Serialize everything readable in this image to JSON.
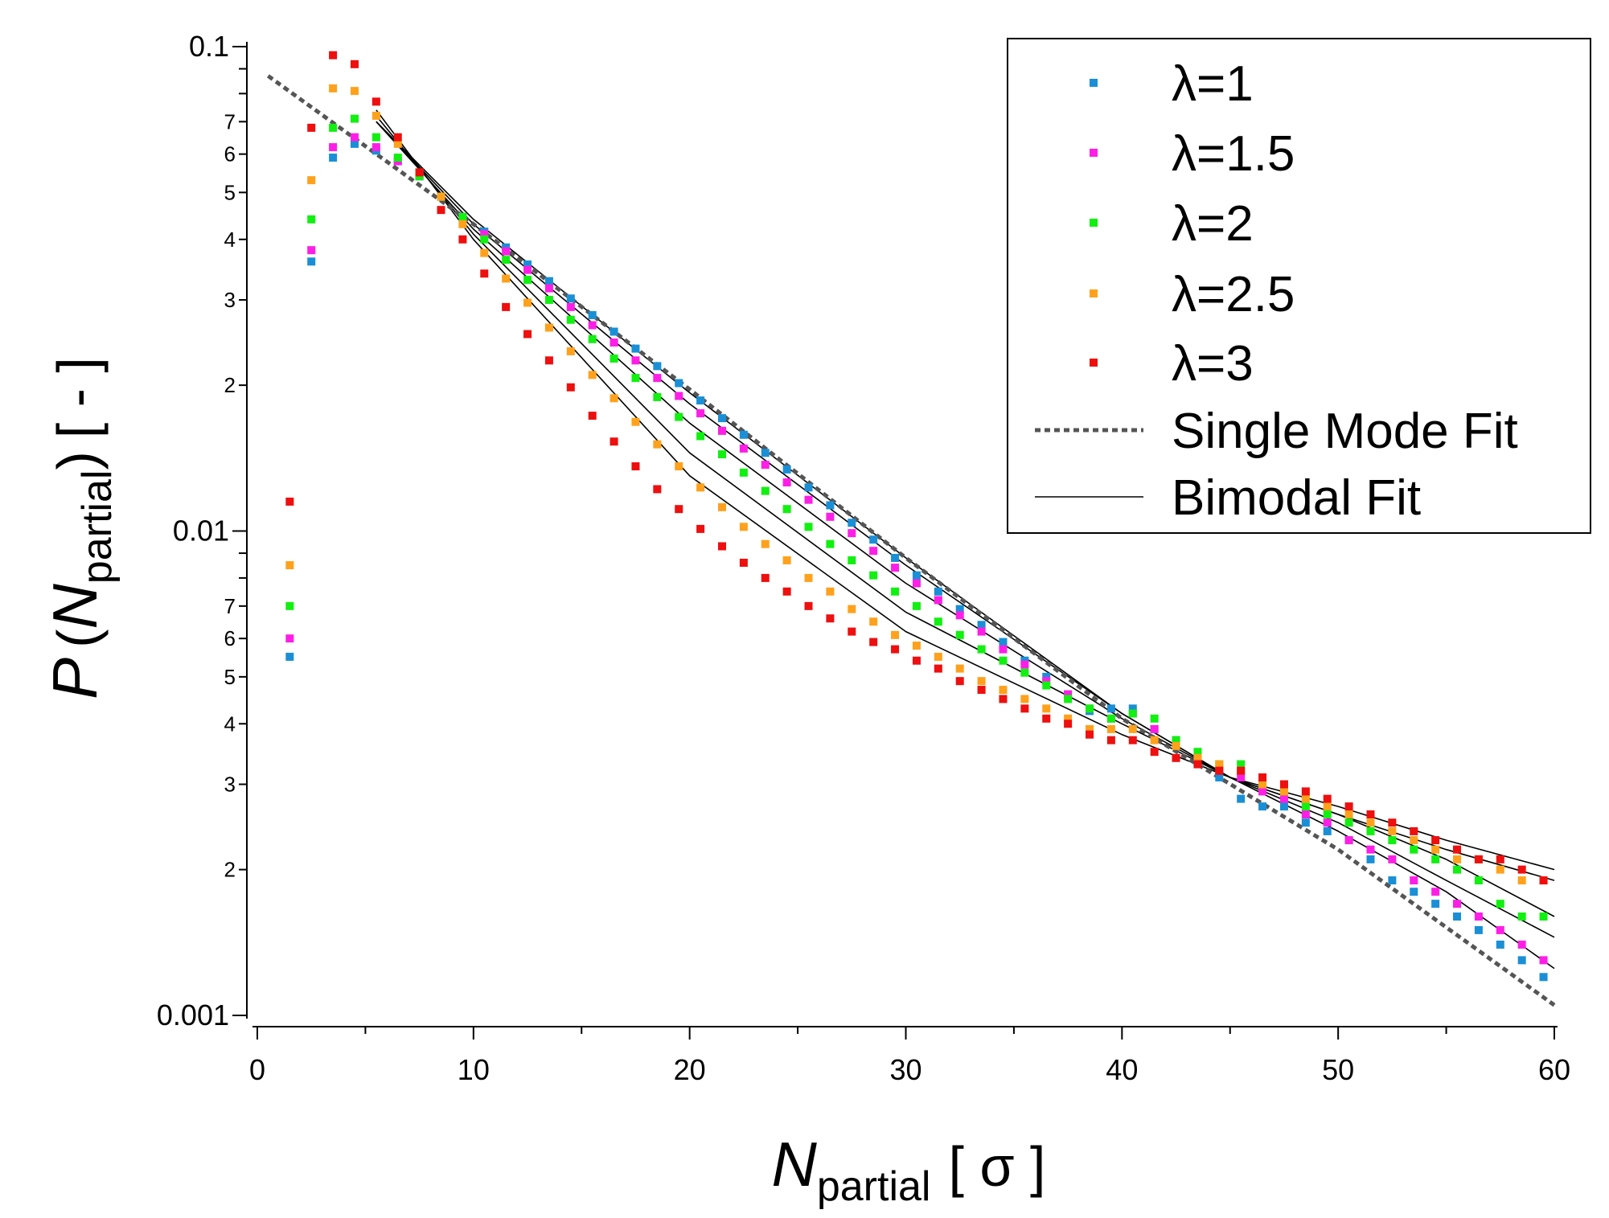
{
  "chart_data": {
    "type": "scatter",
    "xlabel": {
      "main": "N",
      "sub": "partial",
      "unit": "[ σ ]"
    },
    "ylabel": {
      "main": "P",
      "paren_open": "(",
      "var": "N",
      "sub": "partial",
      "paren_close": ")",
      "unit": "[ - ]"
    },
    "xlim": [
      0,
      60
    ],
    "ylim": [
      0.001,
      0.1
    ],
    "yscale": "log",
    "grid": false,
    "legend_position": "top-right",
    "x_ticks": [
      0,
      10,
      20,
      30,
      40,
      50,
      60
    ],
    "x_tick_labels": [
      "0",
      "10",
      "20",
      "30",
      "40",
      "50",
      "60"
    ],
    "y_major_ticks": [
      0.001,
      0.01,
      0.1
    ],
    "y_major_labels": [
      "0.001",
      "0.01",
      "0.1"
    ],
    "y_minor_labels": [
      "2",
      "3",
      "4",
      "5",
      "6",
      "7"
    ],
    "series": [
      {
        "name": "λ=1",
        "color": "#1a8fd6",
        "x": [
          1.5,
          2.5,
          3.5,
          4.5,
          5.5,
          6.5,
          7.5,
          8.5,
          9.5,
          10.5,
          11.5,
          12.5,
          13.5,
          14.5,
          15.5,
          16.5,
          17.5,
          18.5,
          19.5,
          20.5,
          21.5,
          22.5,
          23.5,
          24.5,
          25.5,
          26.5,
          27.5,
          28.5,
          29.5,
          30.5,
          31.5,
          32.5,
          33.5,
          34.5,
          35.5,
          36.5,
          37.5,
          38.5,
          39.5,
          40.5,
          41.5,
          42.5,
          43.5,
          44.5,
          45.5,
          46.5,
          47.5,
          48.5,
          49.5,
          50.5,
          51.5,
          52.5,
          53.5,
          54.5,
          55.5,
          56.5,
          57.5,
          58.5,
          59.5
        ],
        "y": [
          0.0055,
          0.036,
          0.059,
          0.063,
          0.061,
          0.058,
          0.054,
          0.049,
          0.0445,
          0.0415,
          0.0385,
          0.0355,
          0.0328,
          0.0302,
          0.0279,
          0.0258,
          0.0238,
          0.0219,
          0.0202,
          0.0186,
          0.0171,
          0.0158,
          0.0145,
          0.0134,
          0.0123,
          0.0113,
          0.0104,
          0.0096,
          0.0088,
          0.0081,
          0.0075,
          0.0069,
          0.0064,
          0.0059,
          0.0054,
          0.005,
          0.0046,
          0.00425,
          0.0043,
          0.0043,
          0.0039,
          0.0037,
          0.0034,
          0.0031,
          0.0028,
          0.0027,
          0.0027,
          0.0025,
          0.0024,
          0.0023,
          0.0021,
          0.0019,
          0.0018,
          0.0017,
          0.0016,
          0.0015,
          0.0014,
          0.0013,
          0.0012
        ]
      },
      {
        "name": "λ=1.5",
        "color": "#ff1ee6",
        "x": [
          1.5,
          2.5,
          3.5,
          4.5,
          5.5,
          6.5,
          7.5,
          8.5,
          9.5,
          10.5,
          11.5,
          12.5,
          13.5,
          14.5,
          15.5,
          16.5,
          17.5,
          18.5,
          19.5,
          20.5,
          21.5,
          22.5,
          23.5,
          24.5,
          25.5,
          26.5,
          27.5,
          28.5,
          29.5,
          30.5,
          31.5,
          32.5,
          33.5,
          34.5,
          35.5,
          36.5,
          37.5,
          38.5,
          39.5,
          40.5,
          41.5,
          42.5,
          43.5,
          44.5,
          45.5,
          46.5,
          47.5,
          48.5,
          49.5,
          50.5,
          51.5,
          52.5,
          53.5,
          54.5,
          55.5,
          56.5,
          57.5,
          58.5,
          59.5
        ],
        "y": [
          0.006,
          0.038,
          0.062,
          0.065,
          0.062,
          0.058,
          0.054,
          0.049,
          0.0445,
          0.041,
          0.0378,
          0.0346,
          0.0317,
          0.029,
          0.0266,
          0.0245,
          0.0225,
          0.0207,
          0.019,
          0.0175,
          0.0161,
          0.0148,
          0.0137,
          0.0126,
          0.0116,
          0.0107,
          0.0099,
          0.0091,
          0.0084,
          0.0078,
          0.0072,
          0.0067,
          0.0062,
          0.0057,
          0.0053,
          0.0049,
          0.0046,
          0.0043,
          0.0041,
          0.0042,
          0.0039,
          0.0037,
          0.0034,
          0.0032,
          0.0031,
          0.0029,
          0.0028,
          0.0026,
          0.0025,
          0.0023,
          0.0022,
          0.0021,
          0.0019,
          0.0018,
          0.0017,
          0.0016,
          0.0015,
          0.0014,
          0.0013
        ]
      },
      {
        "name": "λ=2",
        "color": "#11f011",
        "x": [
          1.5,
          2.5,
          3.5,
          4.5,
          5.5,
          6.5,
          7.5,
          8.5,
          9.5,
          10.5,
          11.5,
          12.5,
          13.5,
          14.5,
          15.5,
          16.5,
          17.5,
          18.5,
          19.5,
          20.5,
          21.5,
          22.5,
          23.5,
          24.5,
          25.5,
          26.5,
          27.5,
          28.5,
          29.5,
          30.5,
          31.5,
          32.5,
          33.5,
          34.5,
          35.5,
          36.5,
          37.5,
          38.5,
          39.5,
          40.5,
          41.5,
          42.5,
          43.5,
          44.5,
          45.5,
          46.5,
          47.5,
          48.5,
          49.5,
          50.5,
          51.5,
          52.5,
          53.5,
          54.5,
          55.5,
          56.5,
          57.5,
          58.5,
          59.5
        ],
        "y": [
          0.007,
          0.044,
          0.068,
          0.071,
          0.065,
          0.059,
          0.054,
          0.049,
          0.0445,
          0.04,
          0.0363,
          0.033,
          0.03,
          0.0273,
          0.0249,
          0.0227,
          0.0207,
          0.0189,
          0.0172,
          0.0157,
          0.0144,
          0.0132,
          0.0121,
          0.0111,
          0.0102,
          0.0094,
          0.0087,
          0.0081,
          0.0075,
          0.007,
          0.0065,
          0.0061,
          0.0057,
          0.0054,
          0.0051,
          0.0048,
          0.0045,
          0.0043,
          0.0041,
          0.0042,
          0.0041,
          0.0037,
          0.0035,
          0.0033,
          0.0033,
          0.003,
          0.0029,
          0.0027,
          0.0026,
          0.0025,
          0.0024,
          0.0023,
          0.0022,
          0.0021,
          0.002,
          0.0019,
          0.0017,
          0.0016,
          0.0016
        ]
      },
      {
        "name": "λ=2.5",
        "color": "#ffa11c",
        "x": [
          1.5,
          2.5,
          3.5,
          4.5,
          5.5,
          6.5,
          7.5,
          8.5,
          9.5,
          10.5,
          11.5,
          12.5,
          13.5,
          14.5,
          15.5,
          16.5,
          17.5,
          18.5,
          19.5,
          20.5,
          21.5,
          22.5,
          23.5,
          24.5,
          25.5,
          26.5,
          27.5,
          28.5,
          29.5,
          30.5,
          31.5,
          32.5,
          33.5,
          34.5,
          35.5,
          36.5,
          37.5,
          38.5,
          39.5,
          40.5,
          41.5,
          42.5,
          43.5,
          44.5,
          45.5,
          46.5,
          47.5,
          48.5,
          49.5,
          50.5,
          51.5,
          52.5,
          53.5,
          54.5,
          55.5,
          56.5,
          57.5,
          58.5,
          59.5
        ],
        "y": [
          0.0085,
          0.053,
          0.082,
          0.081,
          0.072,
          0.063,
          0.055,
          0.049,
          0.043,
          0.0375,
          0.0332,
          0.0296,
          0.0263,
          0.0235,
          0.021,
          0.0188,
          0.0168,
          0.0151,
          0.0136,
          0.0123,
          0.0112,
          0.0102,
          0.0094,
          0.0087,
          0.008,
          0.0075,
          0.0069,
          0.0065,
          0.0061,
          0.0058,
          0.0055,
          0.0052,
          0.0049,
          0.0047,
          0.0045,
          0.0043,
          0.0041,
          0.0039,
          0.0039,
          0.0039,
          0.0037,
          0.0036,
          0.0034,
          0.0033,
          0.0032,
          0.003,
          0.0029,
          0.0028,
          0.0027,
          0.0026,
          0.0025,
          0.0024,
          0.0023,
          0.0022,
          0.0021,
          0.0021,
          0.002,
          0.0019,
          0.0019
        ]
      },
      {
        "name": "λ=3",
        "color": "#ee0f0f",
        "x": [
          1.5,
          2.5,
          3.5,
          4.5,
          5.5,
          6.5,
          7.5,
          8.5,
          9.5,
          10.5,
          11.5,
          12.5,
          13.5,
          14.5,
          15.5,
          16.5,
          17.5,
          18.5,
          19.5,
          20.5,
          21.5,
          22.5,
          23.5,
          24.5,
          25.5,
          26.5,
          27.5,
          28.5,
          29.5,
          30.5,
          31.5,
          32.5,
          33.5,
          34.5,
          35.5,
          36.5,
          37.5,
          38.5,
          39.5,
          40.5,
          41.5,
          42.5,
          43.5,
          44.5,
          45.5,
          46.5,
          47.5,
          48.5,
          49.5,
          50.5,
          51.5,
          52.5,
          53.5,
          54.5,
          55.5,
          56.5,
          57.5,
          58.5,
          59.5
        ],
        "y": [
          0.0115,
          0.068,
          0.096,
          0.092,
          0.077,
          0.065,
          0.055,
          0.046,
          0.04,
          0.034,
          0.029,
          0.0255,
          0.0225,
          0.0198,
          0.0173,
          0.0153,
          0.0136,
          0.0122,
          0.0111,
          0.0101,
          0.0093,
          0.0086,
          0.008,
          0.0075,
          0.007,
          0.0066,
          0.0062,
          0.0059,
          0.0057,
          0.0054,
          0.0052,
          0.0049,
          0.0047,
          0.0045,
          0.0043,
          0.0041,
          0.004,
          0.0038,
          0.0037,
          0.0037,
          0.0035,
          0.0034,
          0.0033,
          0.0032,
          0.0032,
          0.0031,
          0.003,
          0.0029,
          0.0028,
          0.0027,
          0.0026,
          0.0025,
          0.0024,
          0.0023,
          0.0022,
          0.0021,
          0.0021,
          0.002,
          0.0019
        ]
      }
    ],
    "single_mode_fit": {
      "name": "Single Mode Fit",
      "color": "#555555",
      "x": [
        0.5,
        10,
        20,
        30,
        40,
        50,
        60
      ],
      "y": [
        0.087,
        0.043,
        0.0196,
        0.0088,
        0.0041,
        0.0022,
        0.00105
      ]
    },
    "bimodal_fits": {
      "name": "Bimodal Fit",
      "color": "#000000",
      "curves": [
        {
          "x": [
            5.5,
            10,
            20,
            30,
            40,
            45,
            50,
            55,
            60
          ],
          "y": [
            0.07,
            0.044,
            0.0193,
            0.0088,
            0.0042,
            0.0031,
            0.0024,
            0.0018,
            0.00125
          ]
        },
        {
          "x": [
            5.5,
            10,
            20,
            30,
            40,
            45,
            50,
            55,
            60
          ],
          "y": [
            0.07,
            0.043,
            0.0183,
            0.0085,
            0.0042,
            0.0031,
            0.0025,
            0.0019,
            0.00145
          ]
        },
        {
          "x": [
            5.5,
            10,
            20,
            30,
            40,
            45,
            50,
            55,
            60
          ],
          "y": [
            0.07,
            0.042,
            0.0167,
            0.0078,
            0.0041,
            0.0031,
            0.0026,
            0.0021,
            0.0016
          ]
        },
        {
          "x": [
            5.5,
            10,
            20,
            30,
            40,
            45,
            50,
            55,
            60
          ],
          "y": [
            0.072,
            0.041,
            0.0145,
            0.0068,
            0.004,
            0.0031,
            0.0026,
            0.0022,
            0.0019
          ]
        },
        {
          "x": [
            5.5,
            10,
            20,
            30,
            40,
            45,
            50,
            55,
            60
          ],
          "y": [
            0.074,
            0.04,
            0.013,
            0.0062,
            0.0038,
            0.0031,
            0.0027,
            0.0023,
            0.002
          ]
        }
      ]
    }
  }
}
